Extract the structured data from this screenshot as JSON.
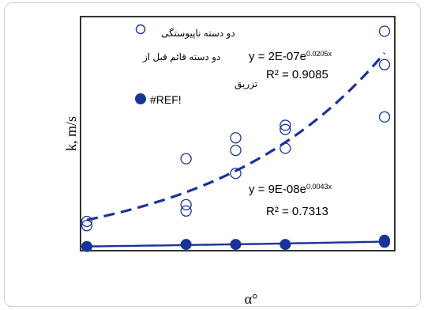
{
  "chart_data": {
    "type": "scatter",
    "xlabel": "α°",
    "ylabel": "k, m/s",
    "grid": false,
    "legend_position": "left-inside",
    "colors": {
      "accent": "#1a3399",
      "markers": "#1a3399"
    },
    "series": [
      {
        "name": "دو دسته ناپیوستگی",
        "marker": "open-circle",
        "x": [
          0,
          0,
          10,
          10,
          10,
          15,
          15,
          15,
          20,
          20,
          20,
          30,
          30,
          30
        ],
        "y": [
          0.12,
          0.1,
          0.2,
          0.17,
          0.42,
          0.52,
          0.46,
          0.35,
          0.47,
          0.56,
          0.58,
          1.03,
          0.87,
          0.62
        ]
      },
      {
        "name": "#REF!",
        "marker": "filled-circle",
        "x": [
          0,
          10,
          15,
          20,
          30,
          30
        ],
        "y": [
          0.0,
          0.01,
          0.01,
          0.01,
          0.02,
          0.03
        ]
      }
    ],
    "trendlines": [
      {
        "label": "y = 2E-07e^0.0205x",
        "r2": "R² = 0.9085",
        "style": "dashed"
      },
      {
        "label": "y = 9E-08e^0.0043x",
        "r2": "R² = 0.7313",
        "style": "solid"
      }
    ],
    "annotations": [
      "دو دسته قائم قبل از",
      "تزریق"
    ],
    "xlim": [
      0,
      30
    ],
    "ylim": [
      -0.02,
      1.1
    ]
  }
}
